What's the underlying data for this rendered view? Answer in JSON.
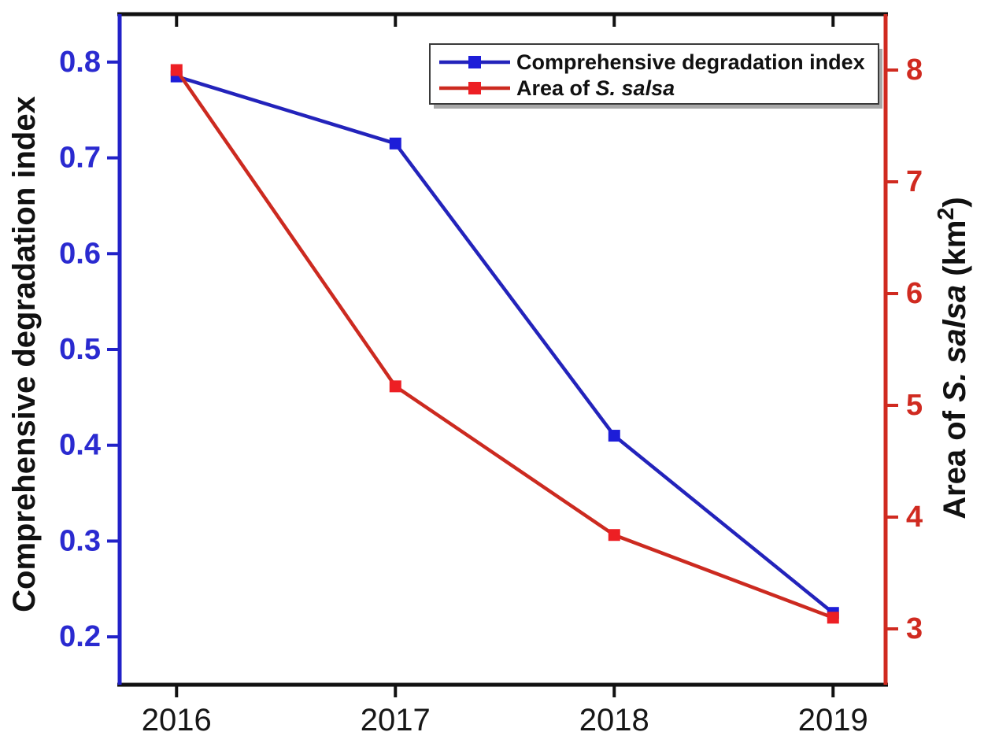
{
  "figure": {
    "background": "#ffffff",
    "border_color_top_bottom": "#111111"
  },
  "chart_data": {
    "type": "line",
    "title": "",
    "grid": false,
    "x_categories": [
      "2016",
      "2017",
      "2018",
      "2019"
    ],
    "x_values": [
      2016,
      2017,
      2018,
      2019
    ],
    "xlim": [
      2015.74,
      2019.24
    ],
    "left_axis": {
      "label": "Comprehensive degradation index",
      "label_segments": [
        {
          "t": "Comprehensive degradation index"
        }
      ],
      "color": "#2222c8",
      "tick_label_color": "#2a2ad0",
      "ticks": [
        "0.2",
        "0.3",
        "0.4",
        "0.5",
        "0.6",
        "0.7",
        "0.8"
      ],
      "lim": [
        0.15,
        0.85
      ]
    },
    "right_axis": {
      "label": "Area of S. salsa (km²)",
      "label_segments": [
        {
          "t": "Area of "
        },
        {
          "t": "S. salsa",
          "i": 1
        },
        {
          "t": " (km"
        },
        {
          "t": "2",
          "sup": 1
        },
        {
          "t": ")"
        }
      ],
      "color": "#d02a20",
      "tick_label_color": "#d02a20",
      "ticks": [
        "3",
        "4",
        "5",
        "6",
        "7",
        "8"
      ],
      "lim": [
        2.5,
        8.5
      ]
    },
    "series": [
      {
        "id": "cdi",
        "name": "Comprehensive degradation index",
        "axis": "left",
        "line_color": "#2323bb",
        "marker_color": "#1d1dd8",
        "marker": "square",
        "x": [
          2016,
          2017,
          2018,
          2019
        ],
        "values": [
          0.785,
          0.715,
          0.41,
          0.225
        ]
      },
      {
        "id": "area",
        "name": "Area of S. salsa",
        "axis": "right",
        "line_color": "#cc2a20",
        "marker_color": "#ed1f24",
        "marker": "square",
        "x": [
          2016,
          2017,
          2018,
          2019
        ],
        "values": [
          8.0,
          5.17,
          3.84,
          3.1
        ]
      }
    ],
    "legend": {
      "position": "top-right-inside",
      "border_color": "#3a3a3a",
      "shadow_color": "#a8a8a8",
      "entries": [
        {
          "series": "cdi",
          "label": "Comprehensive degradation index",
          "segments": [
            {
              "t": "Comprehensive degradation index"
            }
          ]
        },
        {
          "series": "area",
          "label": "Area of S. salsa",
          "segments": [
            {
              "t": "Area of "
            },
            {
              "t": "S. salsa",
              "i": 1
            }
          ]
        }
      ]
    }
  }
}
